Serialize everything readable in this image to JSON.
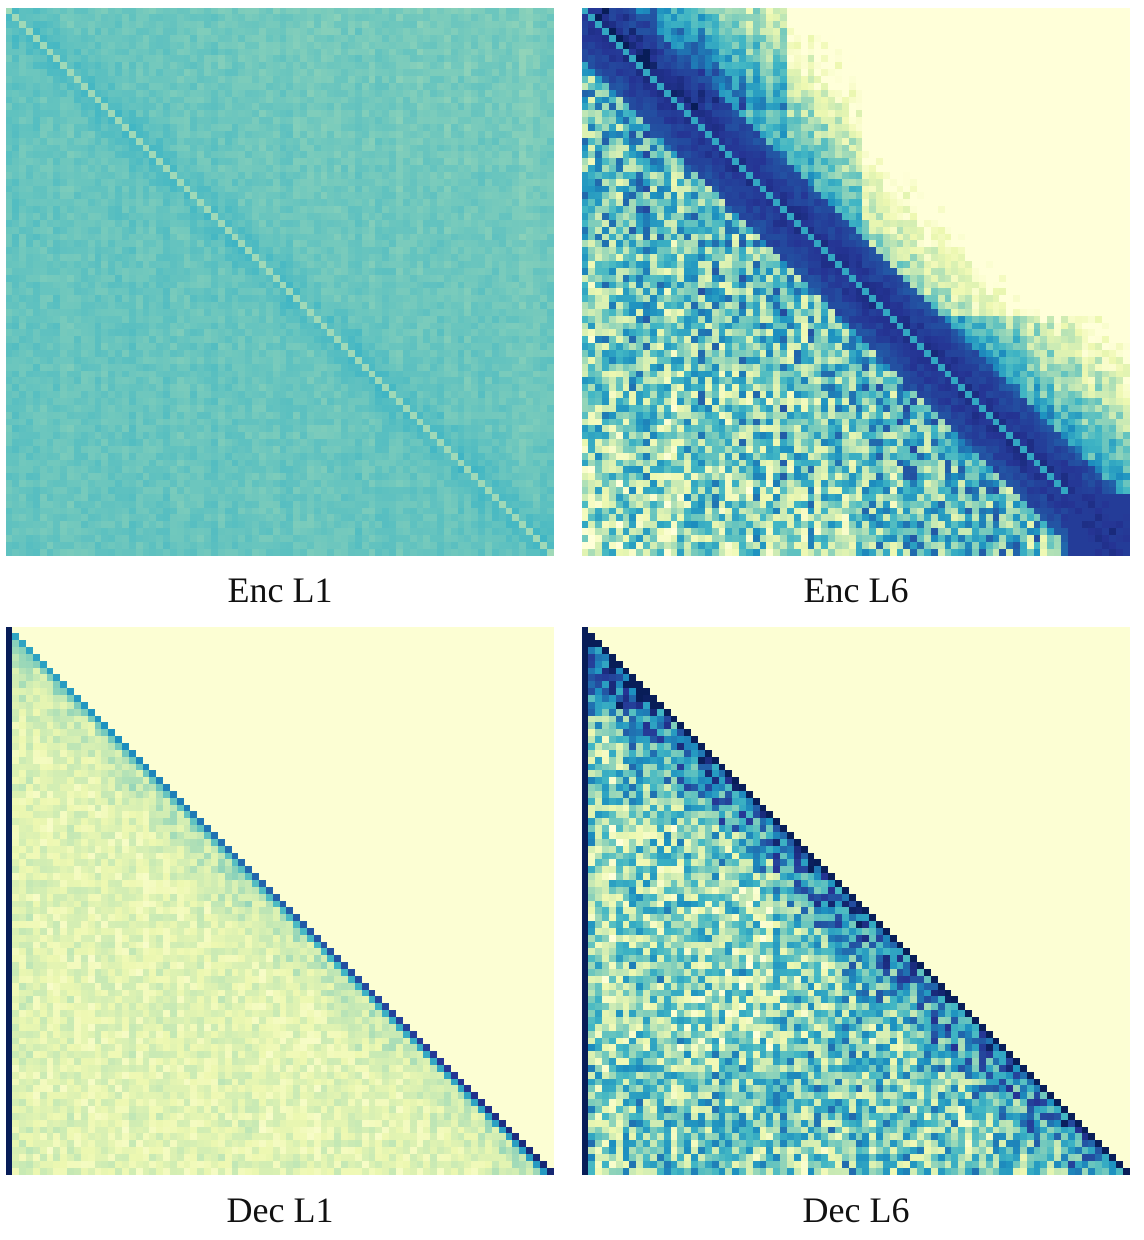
{
  "chart_data": [
    {
      "type": "heatmap",
      "title": "Enc L1",
      "matrix_size": 80,
      "pattern": "encoder-diffuse",
      "causal_mask": false,
      "diagonal_emphasis": "faint",
      "value_range": [
        0,
        1
      ],
      "colormap": "YlGnBu",
      "colorbar": false
    },
    {
      "type": "heatmap",
      "title": "Enc L6",
      "matrix_size": 80,
      "pattern": "encoder-local-band",
      "causal_mask": false,
      "diagonal_emphasis": "strong",
      "value_range": [
        0,
        1
      ],
      "colormap": "YlGnBu",
      "colorbar": false
    },
    {
      "type": "heatmap",
      "title": "Dec L1",
      "matrix_size": 80,
      "pattern": "decoder-causal-first-column",
      "causal_mask": true,
      "diagonal_emphasis": "moderate",
      "value_range": [
        0,
        1
      ],
      "colormap": "YlGnBu",
      "colorbar": false
    },
    {
      "type": "heatmap",
      "title": "Dec L6",
      "matrix_size": 80,
      "pattern": "decoder-causal-dense",
      "causal_mask": true,
      "diagonal_emphasis": "strong",
      "value_range": [
        0,
        1
      ],
      "colormap": "YlGnBu",
      "colorbar": false
    }
  ]
}
